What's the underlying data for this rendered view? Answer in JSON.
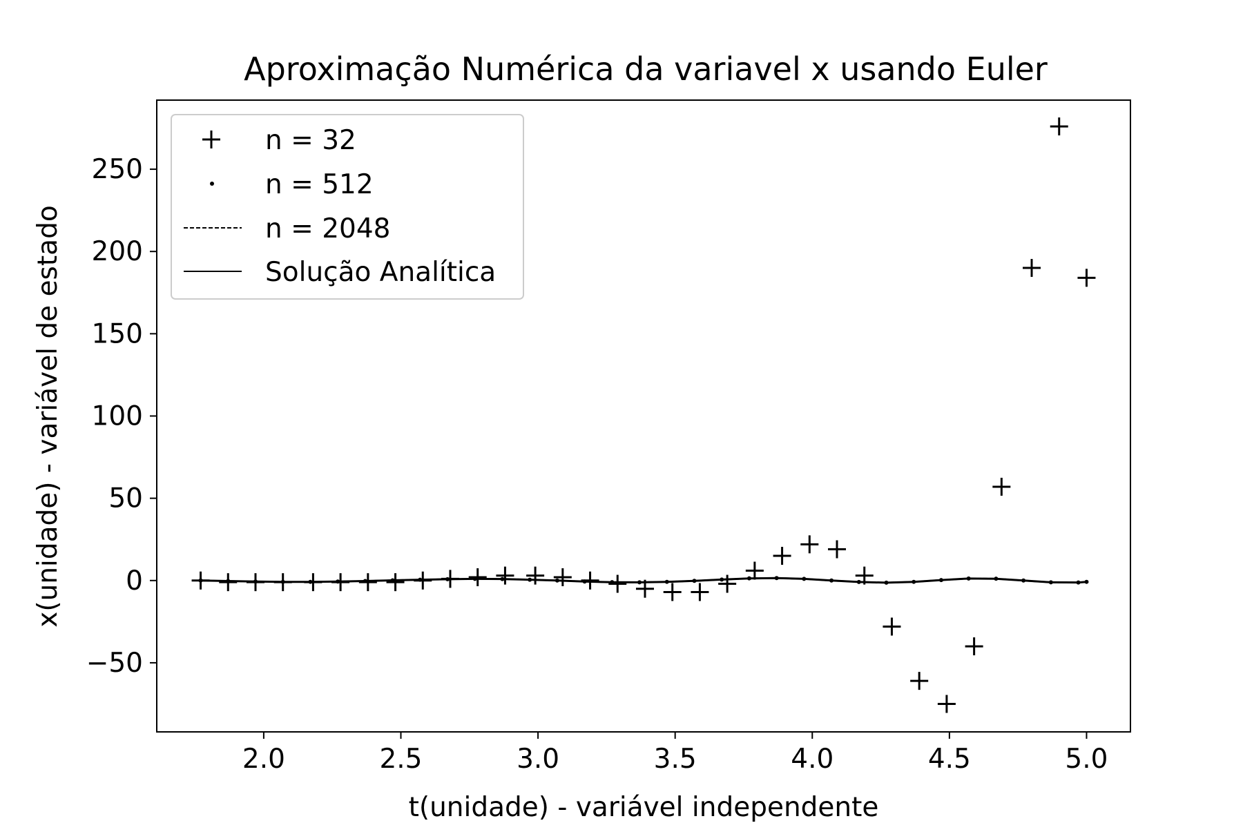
{
  "chart_data": {
    "type": "scatter",
    "title": "Aproximação Numérica da variavel x usando Euler",
    "xlabel": "t(unidade) - variável independente",
    "ylabel": "x(unidade) - variável de estado",
    "xlim": [
      1.61,
      5.16
    ],
    "ylim": [
      -92,
      292
    ],
    "x_ticks": [
      2.0,
      2.5,
      3.0,
      3.5,
      4.0,
      4.5,
      5.0
    ],
    "x_tick_labels": [
      "2.0",
      "2.5",
      "3.0",
      "3.5",
      "4.0",
      "4.5",
      "5.0"
    ],
    "y_ticks": [
      -50,
      0,
      50,
      100,
      150,
      200,
      250
    ],
    "y_tick_labels": [
      "−50",
      "0",
      "50",
      "100",
      "150",
      "200",
      "250"
    ],
    "grid": false,
    "legend_position": "upper-left",
    "legend": [
      {
        "label": "n = 32",
        "marker": "plus"
      },
      {
        "label": "n = 512",
        "marker": "dot"
      },
      {
        "label": "n = 2048",
        "marker": "dashed-line"
      },
      {
        "label": "Solução Analítica",
        "marker": "solid-line"
      }
    ],
    "series": [
      {
        "name": "n = 32",
        "style": "plus",
        "x": [
          1.77,
          1.87,
          1.97,
          2.07,
          2.18,
          2.28,
          2.38,
          2.48,
          2.58,
          2.68,
          2.78,
          2.88,
          2.99,
          3.09,
          3.19,
          3.29,
          3.39,
          3.49,
          3.59,
          3.69,
          3.79,
          3.89,
          3.99,
          4.09,
          4.19,
          4.29,
          4.39,
          4.49,
          4.59,
          4.69,
          4.8,
          4.9,
          5.0
        ],
        "y": [
          0,
          -1,
          -1,
          -1,
          -1,
          -1,
          -1,
          -1,
          0,
          1,
          2,
          3,
          3,
          2,
          0,
          -2,
          -5,
          -7,
          -7,
          -2,
          6,
          15,
          22,
          19,
          3,
          -28,
          -61,
          -75,
          -40,
          57,
          190,
          276,
          184
        ]
      },
      {
        "name": "n = 512",
        "style": "dot",
        "x": [
          1.77,
          1.87,
          1.97,
          2.07,
          2.17,
          2.27,
          2.37,
          2.47,
          2.57,
          2.67,
          2.77,
          2.87,
          2.97,
          3.07,
          3.17,
          3.27,
          3.37,
          3.47,
          3.57,
          3.67,
          3.77,
          3.87,
          3.97,
          4.07,
          4.17,
          4.27,
          4.37,
          4.47,
          4.57,
          4.67,
          4.77,
          4.87,
          4.97,
          5.0
        ],
        "y": [
          0,
          -0.3,
          -0.6,
          -0.8,
          -0.8,
          -0.6,
          -0.3,
          0.1,
          0.5,
          0.8,
          1.0,
          0.9,
          0.5,
          0,
          -0.6,
          -1.0,
          -1.1,
          -0.8,
          -0.2,
          0.6,
          1.3,
          1.5,
          1.0,
          0,
          -0.9,
          -1.3,
          -0.8,
          0.3,
          1.2,
          1.1,
          0,
          -1.1,
          -1.2,
          -0.8
        ]
      },
      {
        "name": "n = 2048",
        "style": "dashed",
        "x": [
          1.77,
          1.87,
          1.97,
          2.07,
          2.17,
          2.27,
          2.37,
          2.47,
          2.57,
          2.67,
          2.77,
          2.87,
          2.97,
          3.07,
          3.17,
          3.27,
          3.37,
          3.47,
          3.57,
          3.67,
          3.77,
          3.87,
          3.97,
          4.07,
          4.17,
          4.27,
          4.37,
          4.47,
          4.57,
          4.67,
          4.77,
          4.87,
          4.97,
          5.0
        ],
        "y": [
          0,
          -0.3,
          -0.6,
          -0.8,
          -0.8,
          -0.6,
          -0.3,
          0.1,
          0.5,
          0.8,
          1.0,
          0.9,
          0.5,
          0,
          -0.6,
          -1.0,
          -1.1,
          -0.8,
          -0.2,
          0.6,
          1.3,
          1.5,
          1.0,
          0,
          -0.9,
          -1.3,
          -0.8,
          0.3,
          1.2,
          1.1,
          0,
          -1.1,
          -1.2,
          -0.8
        ]
      },
      {
        "name": "Solução Analítica",
        "style": "solid",
        "x": [
          1.77,
          1.87,
          1.97,
          2.07,
          2.17,
          2.27,
          2.37,
          2.47,
          2.57,
          2.67,
          2.77,
          2.87,
          2.97,
          3.07,
          3.17,
          3.27,
          3.37,
          3.47,
          3.57,
          3.67,
          3.77,
          3.87,
          3.97,
          4.07,
          4.17,
          4.27,
          4.37,
          4.47,
          4.57,
          4.67,
          4.77,
          4.87,
          4.97,
          5.0
        ],
        "y": [
          0,
          -0.3,
          -0.6,
          -0.8,
          -0.8,
          -0.6,
          -0.3,
          0.1,
          0.5,
          0.8,
          1.0,
          0.9,
          0.5,
          0,
          -0.6,
          -1.0,
          -1.1,
          -0.8,
          -0.2,
          0.6,
          1.3,
          1.5,
          1.0,
          0,
          -0.9,
          -1.3,
          -0.8,
          0.3,
          1.2,
          1.1,
          0,
          -1.1,
          -1.2,
          -0.8
        ]
      }
    ]
  }
}
